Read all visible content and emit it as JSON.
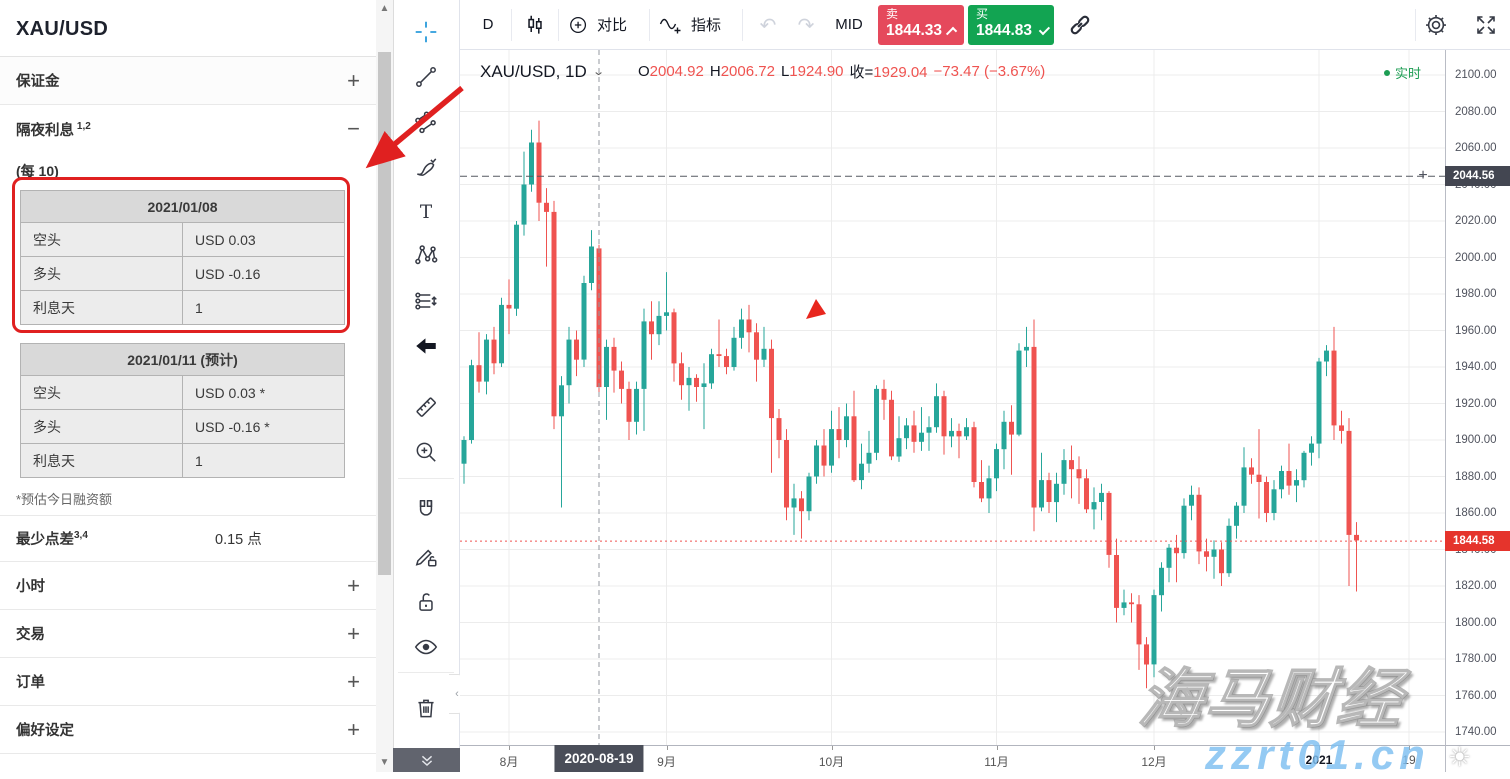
{
  "colors": {
    "candle_up": "#26a69a",
    "candle_down": "#ef5350",
    "sell_red": "#e5495c",
    "buy_green": "#12a452",
    "last_badge": "#e5342c",
    "alert_badge": "#434651",
    "crosshair_blue": "#2d9cdb",
    "annotation_red": "#e02020",
    "watermark_blue": "#8ecbf5",
    "realtime_green": "#1d9d53"
  },
  "sidebar": {
    "title": "XAU/USD",
    "margin_section": {
      "label": "保证金",
      "action": "+"
    },
    "swap_section": {
      "label": "隔夜利息",
      "sup": "1,2",
      "action": "−"
    },
    "per_note": "(每 10)",
    "table1": {
      "header": "2021/01/08",
      "rows": [
        [
          "空头",
          "USD 0.03"
        ],
        [
          "多头",
          "USD -0.16"
        ],
        [
          "利息天",
          "1"
        ]
      ]
    },
    "table2": {
      "header": "2021/01/11 (预计)",
      "rows": [
        [
          "空头",
          "USD 0.03 *"
        ],
        [
          "多头",
          "USD -0.16 *"
        ],
        [
          "利息天",
          "1"
        ]
      ]
    },
    "footnote": "*预估今日融资额",
    "spread": {
      "label": "最少点差",
      "sup": "3,4",
      "value": "0.15 点"
    },
    "collapsed_sections": [
      {
        "label": "小时",
        "action": "+"
      },
      {
        "label": "交易",
        "action": "+"
      },
      {
        "label": "订单",
        "action": "+"
      },
      {
        "label": "偏好设定",
        "action": "+"
      }
    ]
  },
  "topbar": {
    "interval": "D",
    "compare_label": "对比",
    "indicators_label": "指标",
    "mid_label": "MID",
    "sell": {
      "label": "卖",
      "price": "1844.33"
    },
    "buy": {
      "label": "买",
      "price": "1844.83"
    }
  },
  "legend": {
    "symbol": "XAU/USD, 1D",
    "o_label": "O",
    "o": "2004.92",
    "h_label": "H",
    "h": "2006.72",
    "l_label": "L",
    "l": "1924.90",
    "c_label": "收=",
    "c": "1929.04",
    "change": "−73.47 (−3.67%)",
    "realtime": "实时"
  },
  "watermark": {
    "line1": "海马财经",
    "line2": "zzrt01.cn"
  },
  "chart_data": {
    "type": "candlestick",
    "symbol": "XAU/USD",
    "interval": "1D",
    "y_axis": {
      "max": 2100,
      "min": 1740,
      "step": 20
    },
    "months": [
      {
        "label": "8月",
        "index": 6
      },
      {
        "label": "9月",
        "index": 27
      },
      {
        "label": "10月",
        "index": 49
      },
      {
        "label": "11月",
        "index": 71
      },
      {
        "label": "12月",
        "index": 92
      },
      {
        "label": "2021",
        "index": 114
      },
      {
        "label": "19",
        "index": 126
      }
    ],
    "crosshair": {
      "date": "2020-08-19",
      "index": 18
    },
    "crosshair_ohlc": {
      "open": 2004.92,
      "high": 2006.72,
      "low": 1924.9,
      "close": 1929.04,
      "change": -73.47,
      "change_pct": -3.67
    },
    "alert_price": 2044.56,
    "alert_price_label": "2044.56",
    "last_price": 1844.58,
    "last_price_label": "1844.58",
    "sell_price": 1844.33,
    "buy_price": 1844.83,
    "candles": [
      [
        "07-24",
        1887,
        1902,
        1876,
        1900
      ],
      [
        "07-27",
        1900,
        1944,
        1898,
        1941
      ],
      [
        "07-28",
        1941,
        1959,
        1926,
        1932
      ],
      [
        "07-29",
        1932,
        1958,
        1925,
        1955
      ],
      [
        "07-30",
        1955,
        1962,
        1936,
        1942
      ],
      [
        "07-31",
        1942,
        1978,
        1940,
        1974
      ],
      [
        "08-03",
        1974,
        1988,
        1958,
        1972
      ],
      [
        "08-04",
        1972,
        2020,
        1968,
        2018
      ],
      [
        "08-05",
        2018,
        2058,
        2012,
        2040
      ],
      [
        "08-06",
        2040,
        2070,
        2036,
        2063
      ],
      [
        "08-07",
        2063,
        2075,
        2020,
        2030
      ],
      [
        "08-10",
        2030,
        2038,
        1995,
        2025
      ],
      [
        "08-11",
        2025,
        2031,
        1906,
        1913
      ],
      [
        "08-12",
        1913,
        1935,
        1863,
        1930
      ],
      [
        "08-13",
        1930,
        1962,
        1920,
        1955
      ],
      [
        "08-14",
        1955,
        1960,
        1935,
        1944
      ],
      [
        "08-17",
        1944,
        1990,
        1940,
        1986
      ],
      [
        "08-18",
        1986,
        2015,
        1982,
        2006
      ],
      [
        "08-19",
        2005,
        2007,
        1925,
        1929
      ],
      [
        "08-20",
        1929,
        1955,
        1911,
        1951
      ],
      [
        "08-21",
        1951,
        1956,
        1926,
        1938
      ],
      [
        "08-24",
        1938,
        1943,
        1920,
        1928
      ],
      [
        "08-25",
        1928,
        1932,
        1900,
        1910
      ],
      [
        "08-26",
        1910,
        1932,
        1903,
        1928
      ],
      [
        "08-27",
        1928,
        1972,
        1905,
        1965
      ],
      [
        "08-28",
        1965,
        1976,
        1944,
        1958
      ],
      [
        "08-31",
        1958,
        1976,
        1952,
        1968
      ],
      [
        "09-01",
        1968,
        1992,
        1960,
        1970
      ],
      [
        "09-02",
        1970,
        1972,
        1932,
        1942
      ],
      [
        "09-03",
        1942,
        1948,
        1922,
        1930
      ],
      [
        "09-04",
        1930,
        1940,
        1916,
        1934
      ],
      [
        "09-07",
        1934,
        1936,
        1921,
        1929
      ],
      [
        "09-08",
        1929,
        1942,
        1906,
        1931
      ],
      [
        "09-09",
        1931,
        1950,
        1928,
        1947
      ],
      [
        "09-10",
        1947,
        1966,
        1940,
        1946
      ],
      [
        "09-11",
        1946,
        1950,
        1936,
        1940
      ],
      [
        "09-14",
        1940,
        1962,
        1938,
        1956
      ],
      [
        "09-15",
        1956,
        1972,
        1950,
        1966
      ],
      [
        "09-16",
        1966,
        1974,
        1948,
        1959
      ],
      [
        "09-17",
        1959,
        1964,
        1932,
        1944
      ],
      [
        "09-18",
        1944,
        1962,
        1940,
        1950
      ],
      [
        "09-21",
        1950,
        1955,
        1882,
        1912
      ],
      [
        "09-22",
        1912,
        1917,
        1890,
        1900
      ],
      [
        "09-23",
        1900,
        1906,
        1856,
        1863
      ],
      [
        "09-24",
        1863,
        1876,
        1848,
        1868
      ],
      [
        "09-25",
        1868,
        1872,
        1846,
        1861
      ],
      [
        "09-28",
        1861,
        1882,
        1856,
        1880
      ],
      [
        "09-29",
        1880,
        1900,
        1876,
        1897
      ],
      [
        "09-30",
        1897,
        1906,
        1880,
        1886
      ],
      [
        "10-01",
        1886,
        1916,
        1882,
        1906
      ],
      [
        "10-02",
        1906,
        1918,
        1890,
        1900
      ],
      [
        "10-05",
        1900,
        1920,
        1896,
        1913
      ],
      [
        "10-06",
        1913,
        1927,
        1877,
        1878
      ],
      [
        "10-07",
        1878,
        1898,
        1873,
        1887
      ],
      [
        "10-08",
        1887,
        1905,
        1882,
        1893
      ],
      [
        "10-09",
        1893,
        1930,
        1889,
        1928
      ],
      [
        "10-12",
        1928,
        1933,
        1911,
        1922
      ],
      [
        "10-13",
        1922,
        1927,
        1889,
        1891
      ],
      [
        "10-14",
        1891,
        1913,
        1888,
        1901
      ],
      [
        "10-15",
        1901,
        1912,
        1895,
        1908
      ],
      [
        "10-16",
        1908,
        1916,
        1893,
        1899
      ],
      [
        "10-19",
        1899,
        1918,
        1894,
        1904
      ],
      [
        "10-20",
        1904,
        1913,
        1894,
        1907
      ],
      [
        "10-21",
        1907,
        1931,
        1904,
        1924
      ],
      [
        "10-22",
        1924,
        1927,
        1892,
        1902
      ],
      [
        "10-23",
        1902,
        1912,
        1896,
        1905
      ],
      [
        "10-26",
        1905,
        1909,
        1890,
        1902
      ],
      [
        "10-27",
        1902,
        1912,
        1900,
        1907
      ],
      [
        "10-28",
        1907,
        1910,
        1874,
        1877
      ],
      [
        "10-29",
        1877,
        1889,
        1866,
        1868
      ],
      [
        "10-30",
        1868,
        1886,
        1860,
        1879
      ],
      [
        "11-02",
        1879,
        1898,
        1872,
        1895
      ],
      [
        "11-03",
        1895,
        1916,
        1884,
        1910
      ],
      [
        "11-04",
        1910,
        1919,
        1881,
        1903
      ],
      [
        "11-05",
        1903,
        1953,
        1902,
        1949
      ],
      [
        "11-06",
        1949,
        1962,
        1940,
        1951
      ],
      [
        "11-09",
        1951,
        1966,
        1850,
        1863
      ],
      [
        "11-10",
        1863,
        1893,
        1861,
        1878
      ],
      [
        "11-11",
        1878,
        1882,
        1860,
        1866
      ],
      [
        "11-12",
        1866,
        1882,
        1855,
        1876
      ],
      [
        "11-13",
        1876,
        1895,
        1870,
        1889
      ],
      [
        "11-16",
        1889,
        1897,
        1868,
        1884
      ],
      [
        "11-17",
        1884,
        1891,
        1865,
        1879
      ],
      [
        "11-18",
        1879,
        1884,
        1860,
        1862
      ],
      [
        "11-19",
        1862,
        1874,
        1851,
        1866
      ],
      [
        "11-20",
        1866,
        1876,
        1856,
        1871
      ],
      [
        "11-23",
        1871,
        1872,
        1830,
        1837
      ],
      [
        "11-24",
        1837,
        1846,
        1800,
        1808
      ],
      [
        "11-25",
        1808,
        1818,
        1804,
        1811
      ],
      [
        "11-26",
        1811,
        1816,
        1800,
        1810
      ],
      [
        "11-27",
        1810,
        1815,
        1774,
        1788
      ],
      [
        "11-30",
        1788,
        1792,
        1764,
        1777
      ],
      [
        "12-01",
        1777,
        1818,
        1770,
        1815
      ],
      [
        "12-02",
        1815,
        1833,
        1806,
        1830
      ],
      [
        "12-03",
        1830,
        1843,
        1822,
        1841
      ],
      [
        "12-04",
        1841,
        1848,
        1822,
        1838
      ],
      [
        "12-07",
        1838,
        1868,
        1835,
        1864
      ],
      [
        "12-08",
        1864,
        1875,
        1856,
        1870
      ],
      [
        "12-09",
        1870,
        1874,
        1832,
        1839
      ],
      [
        "12-10",
        1839,
        1846,
        1828,
        1836
      ],
      [
        "12-11",
        1836,
        1845,
        1824,
        1840
      ],
      [
        "12-14",
        1840,
        1844,
        1820,
        1827
      ],
      [
        "12-15",
        1827,
        1857,
        1825,
        1853
      ],
      [
        "12-16",
        1853,
        1866,
        1846,
        1864
      ],
      [
        "12-17",
        1864,
        1896,
        1860,
        1885
      ],
      [
        "12-18",
        1885,
        1890,
        1876,
        1881
      ],
      [
        "12-21",
        1881,
        1906,
        1857,
        1877
      ],
      [
        "12-22",
        1877,
        1880,
        1855,
        1860
      ],
      [
        "12-23",
        1860,
        1878,
        1856,
        1873
      ],
      [
        "12-24",
        1873,
        1886,
        1868,
        1883
      ],
      [
        "12-28",
        1883,
        1898,
        1870,
        1875
      ],
      [
        "12-29",
        1875,
        1884,
        1866,
        1878
      ],
      [
        "12-30",
        1878,
        1894,
        1874,
        1893
      ],
      [
        "12-31",
        1893,
        1902,
        1886,
        1898
      ],
      [
        "01-04",
        1898,
        1945,
        1890,
        1943
      ],
      [
        "01-05",
        1943,
        1952,
        1935,
        1949
      ],
      [
        "01-06",
        1949,
        1962,
        1900,
        1908
      ],
      [
        "01-07",
        1908,
        1916,
        1898,
        1905
      ],
      [
        "01-08",
        1905,
        1912,
        1820,
        1848
      ],
      [
        "01-11",
        1848,
        1855,
        1817,
        1845
      ]
    ]
  }
}
